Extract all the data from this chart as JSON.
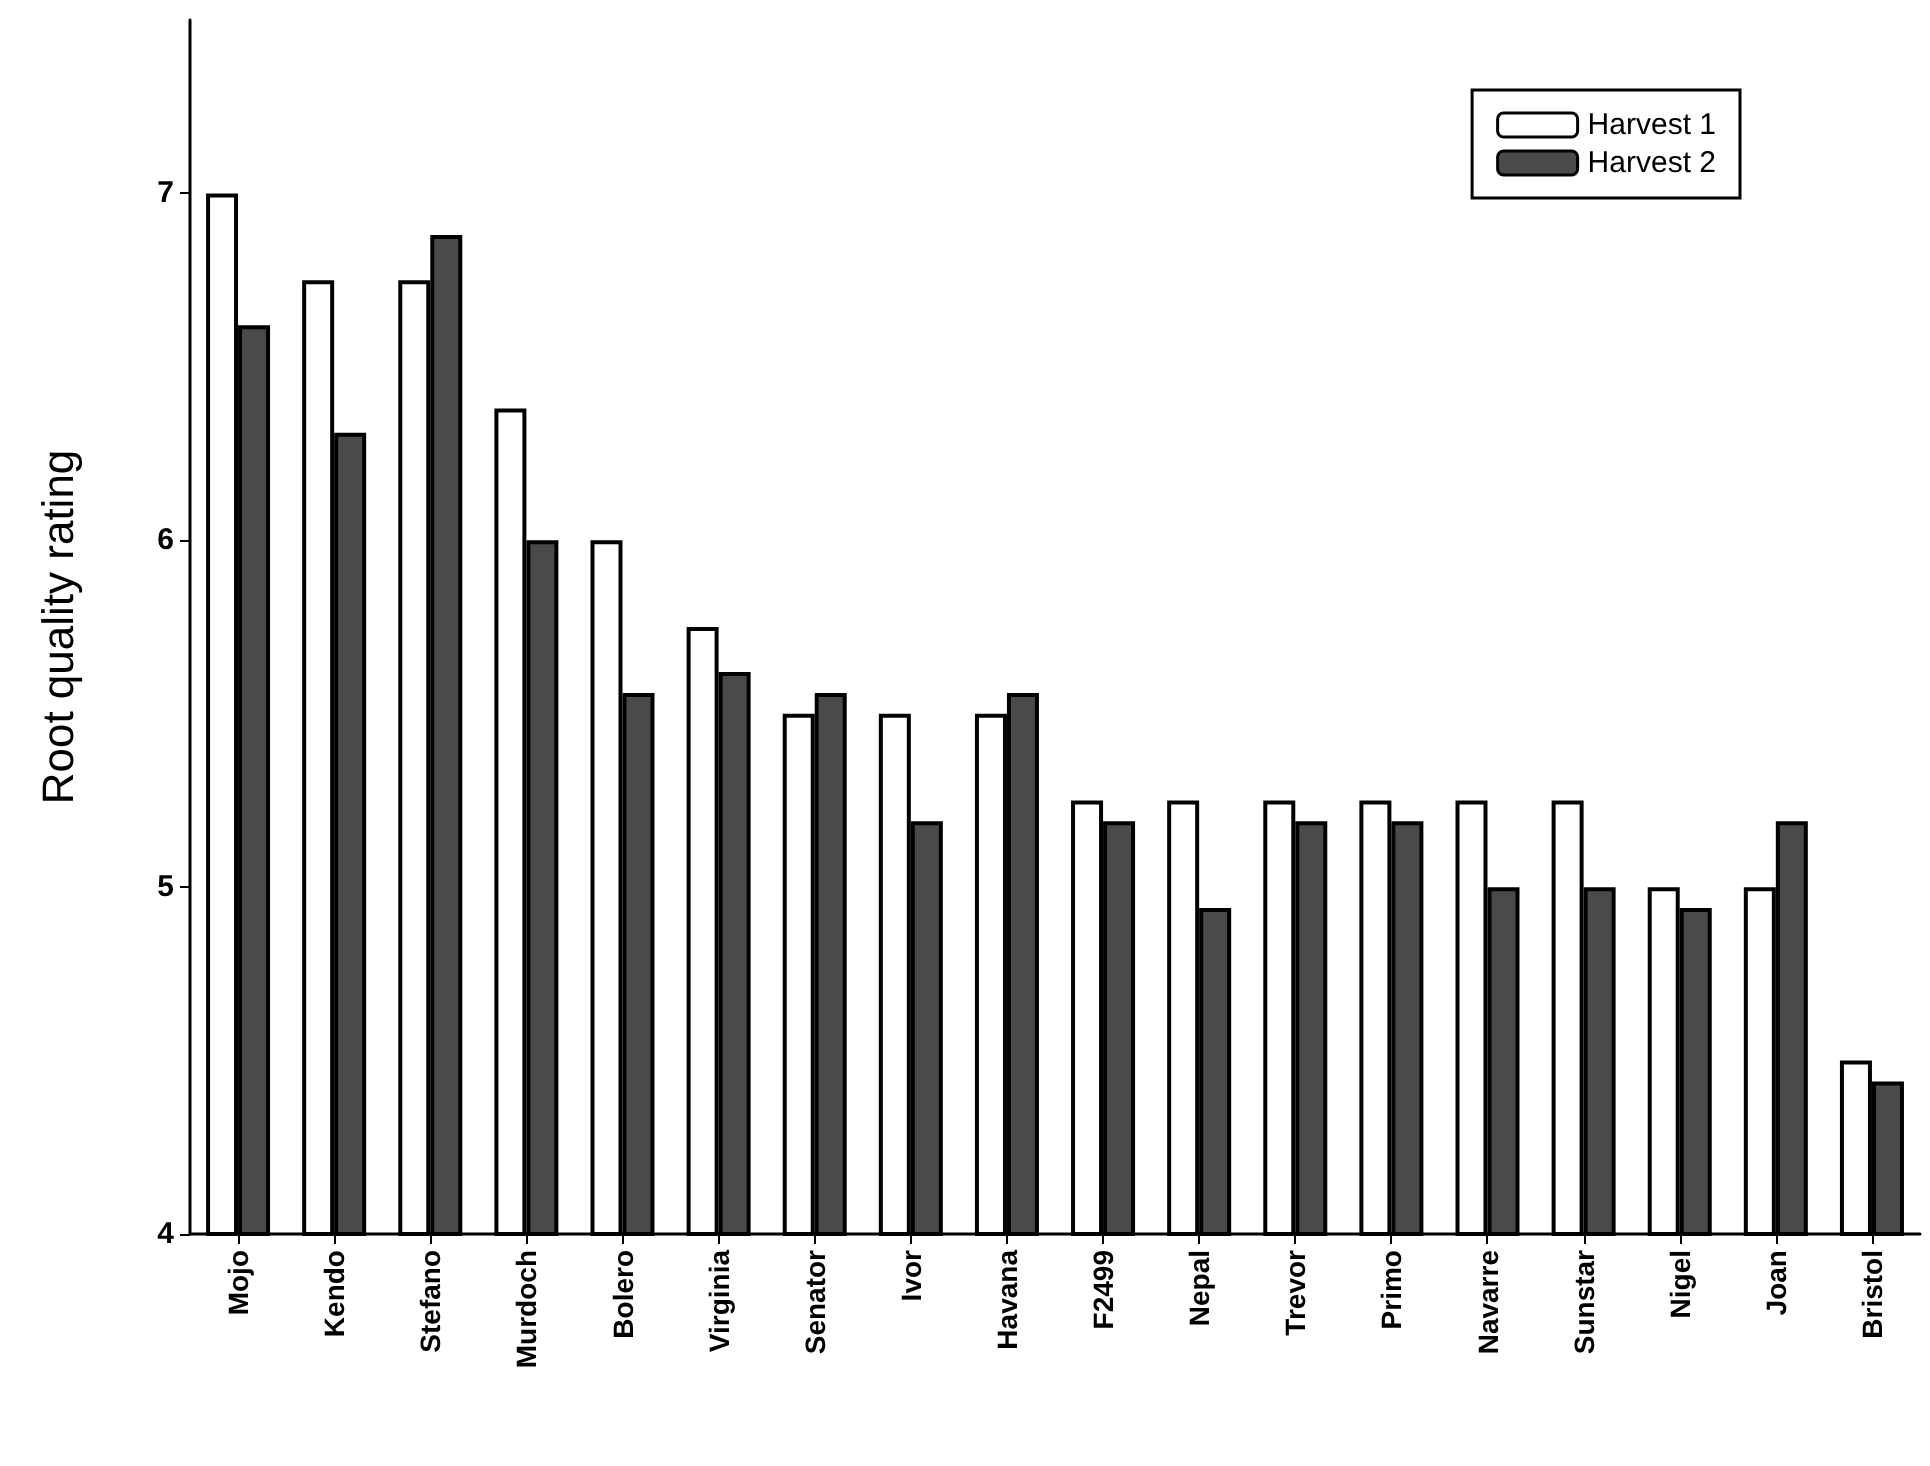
{
  "chart_data": {
    "type": "bar",
    "ylabel": "Root quality rating",
    "categories": [
      "Mojo",
      "Kendo",
      "Stefano",
      "Murdoch",
      "Bolero",
      "Virginia",
      "Senator",
      "Ivor",
      "Havana",
      "F2499",
      "Nepal",
      "Trevor",
      "Primo",
      "Navarre",
      "Sunstar",
      "Nigel",
      "Joan",
      "Bristol"
    ],
    "series": [
      {
        "name": "Harvest 1",
        "color": "#ffffff",
        "values": [
          7.0,
          6.75,
          6.75,
          6.38,
          6.0,
          5.75,
          5.5,
          5.5,
          5.5,
          5.25,
          5.25,
          5.25,
          5.25,
          5.25,
          5.25,
          5.0,
          5.0,
          4.5
        ]
      },
      {
        "name": "Harvest 2",
        "color": "#4a4a4a",
        "values": [
          6.62,
          6.31,
          6.88,
          6.0,
          5.56,
          5.62,
          5.56,
          5.19,
          5.56,
          5.19,
          4.94,
          5.19,
          5.19,
          5.0,
          5.0,
          4.94,
          5.19,
          4.44
        ]
      }
    ],
    "ylim": [
      4,
      7.5
    ],
    "yticks": [
      4,
      5,
      6,
      7
    ],
    "grid": false,
    "legend": "top right"
  }
}
